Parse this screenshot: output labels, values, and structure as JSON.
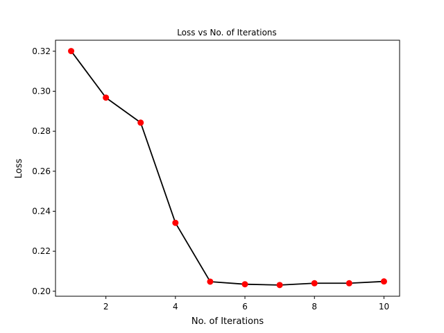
{
  "chart_data": {
    "type": "line",
    "title": "Loss vs No. of Iterations",
    "xlabel": "No. of Iterations",
    "ylabel": "Loss",
    "xlim": [
      0.55,
      10.45
    ],
    "ylim": [
      0.1975,
      0.3255
    ],
    "xticks": [
      2,
      4,
      6,
      8,
      10
    ],
    "xtick_labels": [
      "2",
      "4",
      "6",
      "8",
      "10"
    ],
    "yticks": [
      0.2,
      0.22,
      0.24,
      0.26,
      0.28,
      0.3,
      0.32
    ],
    "ytick_labels": [
      "0.20",
      "0.22",
      "0.24",
      "0.26",
      "0.28",
      "0.30",
      "0.32"
    ],
    "grid": false,
    "series": [
      {
        "line_color": "#000000",
        "marker_color": "#ff0000",
        "x": [
          1,
          2,
          3,
          4,
          5,
          6,
          7,
          8,
          9,
          10
        ],
        "y": [
          0.3201,
          0.2968,
          0.2843,
          0.2342,
          0.2048,
          0.2035,
          0.2031,
          0.204,
          0.204,
          0.2049
        ]
      }
    ]
  }
}
